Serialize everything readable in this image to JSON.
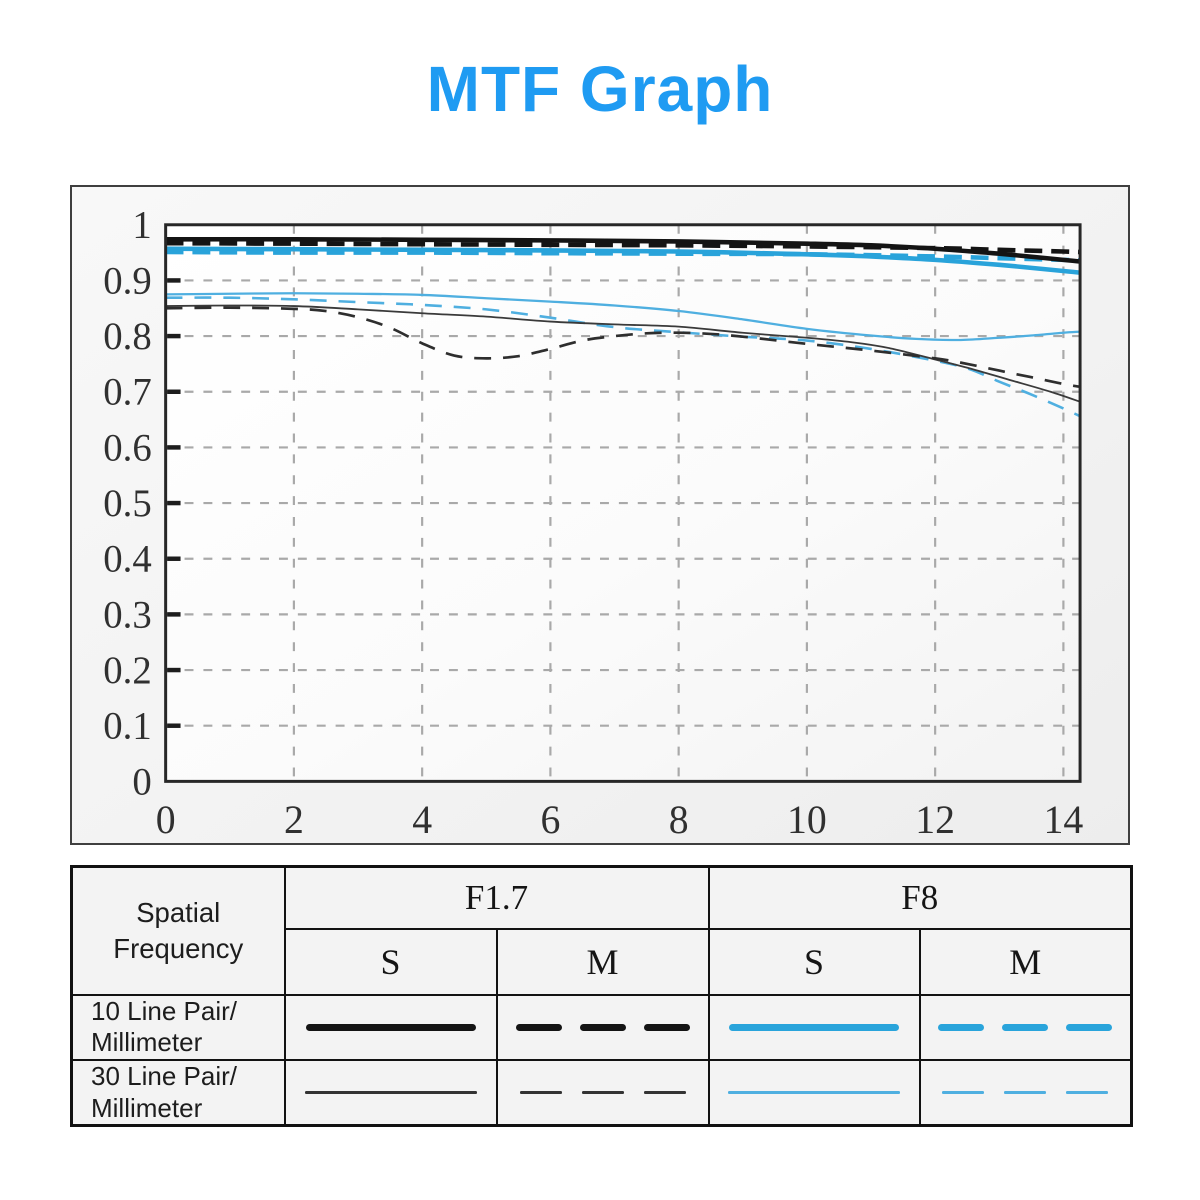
{
  "header": {
    "title": "MTF Graph",
    "title_color": "#1F9BF2"
  },
  "chart_data": {
    "type": "line",
    "title": "MTF Graph",
    "xlim": [
      0,
      14.26
    ],
    "ylim": [
      0,
      1
    ],
    "grid": "dashed",
    "grid_color": "#a9a9a9",
    "frame_color": "#272727",
    "axis_text_color": "#303030",
    "x_tick_values": [
      0,
      2,
      4,
      6,
      8,
      10,
      12,
      14
    ],
    "x_tick_labels": [
      "0",
      "2",
      "4",
      "6",
      "8",
      "10",
      "12",
      "14"
    ],
    "y_tick_values": [
      1,
      0.9,
      0.8,
      0.7,
      0.6,
      0.5,
      0.4,
      0.3,
      0.2,
      0.1,
      0
    ],
    "y_tick_labels": [
      "1",
      "0.9",
      "0.8",
      "0.7",
      "0.6",
      "0.5",
      "0.4",
      "0.3",
      "0.2",
      "0.1",
      "0"
    ],
    "series": [
      {
        "name": "f8-s-30lp",
        "aperture": "F8",
        "orientation": "S",
        "frequency": "30 Line Pair/Millimeter",
        "color": "#4FAFE0",
        "width": 2.3,
        "dash": null,
        "points": [
          [
            0,
            0.875
          ],
          [
            1,
            0.876
          ],
          [
            2,
            0.877
          ],
          [
            3,
            0.876
          ],
          [
            4,
            0.874
          ],
          [
            5,
            0.868
          ],
          [
            6,
            0.862
          ],
          [
            7,
            0.855
          ],
          [
            8,
            0.845
          ],
          [
            9,
            0.83
          ],
          [
            10,
            0.813
          ],
          [
            11,
            0.801
          ],
          [
            11.7,
            0.795
          ],
          [
            12.4,
            0.793
          ],
          [
            13,
            0.797
          ],
          [
            13.5,
            0.801
          ],
          [
            14,
            0.806
          ],
          [
            14.26,
            0.808
          ]
        ]
      },
      {
        "name": "f8-m-30lp",
        "aperture": "F8",
        "orientation": "M",
        "frequency": "30 Line Pair/Millimeter",
        "color": "#4FAFE0",
        "width": 2.6,
        "dash": [
          17,
          12
        ],
        "points": [
          [
            0,
            0.869
          ],
          [
            1,
            0.869
          ],
          [
            2,
            0.866
          ],
          [
            3,
            0.861
          ],
          [
            4,
            0.856
          ],
          [
            5,
            0.848
          ],
          [
            6,
            0.833
          ],
          [
            7,
            0.816
          ],
          [
            8,
            0.807
          ],
          [
            9,
            0.799
          ],
          [
            10,
            0.792
          ],
          [
            11,
            0.777
          ],
          [
            11.9,
            0.758
          ],
          [
            12.5,
            0.742
          ],
          [
            13,
            0.718
          ],
          [
            13.5,
            0.695
          ],
          [
            14,
            0.67
          ],
          [
            14.26,
            0.656
          ]
        ]
      },
      {
        "name": "f1.7-s-30lp",
        "aperture": "F1.7",
        "orientation": "S",
        "frequency": "30 Line Pair/Millimeter",
        "color": "#3a3a3a",
        "width": 1.8,
        "dash": null,
        "points": [
          [
            0,
            0.854
          ],
          [
            1,
            0.855
          ],
          [
            2,
            0.854
          ],
          [
            3,
            0.848
          ],
          [
            4,
            0.841
          ],
          [
            5,
            0.835
          ],
          [
            6,
            0.826
          ],
          [
            7,
            0.821
          ],
          [
            8,
            0.817
          ],
          [
            9,
            0.806
          ],
          [
            10,
            0.797
          ],
          [
            10.7,
            0.789
          ],
          [
            11.3,
            0.778
          ],
          [
            12,
            0.758
          ],
          [
            12.6,
            0.74
          ],
          [
            13.2,
            0.72
          ],
          [
            13.8,
            0.7
          ],
          [
            14.26,
            0.682
          ]
        ]
      },
      {
        "name": "f1.7-m-30lp",
        "aperture": "F1.7",
        "orientation": "M",
        "frequency": "30 Line Pair/Millimeter",
        "color": "#2e2e2e",
        "width": 2.7,
        "dash": [
          17,
          12
        ],
        "points": [
          [
            0,
            0.85
          ],
          [
            1,
            0.851
          ],
          [
            2,
            0.849
          ],
          [
            2.5,
            0.845
          ],
          [
            3,
            0.834
          ],
          [
            3.5,
            0.815
          ],
          [
            4,
            0.787
          ],
          [
            4.5,
            0.765
          ],
          [
            5,
            0.76
          ],
          [
            5.5,
            0.764
          ],
          [
            6,
            0.777
          ],
          [
            6.5,
            0.792
          ],
          [
            7,
            0.8
          ],
          [
            7.5,
            0.805
          ],
          [
            8,
            0.806
          ],
          [
            8.5,
            0.804
          ],
          [
            9,
            0.799
          ],
          [
            10,
            0.786
          ],
          [
            11,
            0.774
          ],
          [
            12,
            0.76
          ],
          [
            12.5,
            0.75
          ],
          [
            13,
            0.738
          ],
          [
            13.5,
            0.726
          ],
          [
            14,
            0.714
          ],
          [
            14.26,
            0.709
          ]
        ]
      },
      {
        "name": "f8-s-10lp",
        "aperture": "F8",
        "orientation": "S",
        "frequency": "10 Line Pair/Millimeter",
        "color": "#29A3DA",
        "width": 4.6,
        "dash": null,
        "points": [
          [
            0,
            0.957
          ],
          [
            2,
            0.956
          ],
          [
            4,
            0.955
          ],
          [
            6,
            0.954
          ],
          [
            8,
            0.952
          ],
          [
            10,
            0.947
          ],
          [
            11,
            0.943
          ],
          [
            12,
            0.937
          ],
          [
            13,
            0.928
          ],
          [
            14,
            0.917
          ],
          [
            14.26,
            0.914
          ]
        ]
      },
      {
        "name": "f8-m-10lp",
        "aperture": "F8",
        "orientation": "M",
        "frequency": "10 Line Pair/Millimeter",
        "color": "#29A3DA",
        "width": 4.6,
        "dash": [
          18,
          9
        ],
        "points": [
          [
            0,
            0.951
          ],
          [
            2,
            0.95
          ],
          [
            4,
            0.95
          ],
          [
            6,
            0.949
          ],
          [
            8,
            0.948
          ],
          [
            10,
            0.947
          ],
          [
            12,
            0.943
          ],
          [
            13,
            0.94
          ],
          [
            14,
            0.937
          ],
          [
            14.26,
            0.936
          ]
        ]
      },
      {
        "name": "f1.7-s-10lp",
        "aperture": "F1.7",
        "orientation": "S",
        "frequency": "10 Line Pair/Millimeter",
        "color": "#141414",
        "width": 4.6,
        "dash": null,
        "points": [
          [
            0,
            0.974
          ],
          [
            2,
            0.974
          ],
          [
            4,
            0.973
          ],
          [
            6,
            0.972
          ],
          [
            8,
            0.97
          ],
          [
            10,
            0.966
          ],
          [
            11,
            0.963
          ],
          [
            12,
            0.957
          ],
          [
            13,
            0.948
          ],
          [
            14,
            0.937
          ],
          [
            14.26,
            0.934
          ]
        ]
      },
      {
        "name": "f1.7-m-10lp",
        "aperture": "F1.7",
        "orientation": "M",
        "frequency": "10 Line Pair/Millimeter",
        "color": "#141414",
        "width": 4.6,
        "dash": [
          18,
          9
        ],
        "points": [
          [
            0,
            0.967
          ],
          [
            2,
            0.966
          ],
          [
            4,
            0.965
          ],
          [
            6,
            0.964
          ],
          [
            8,
            0.963
          ],
          [
            10,
            0.961
          ],
          [
            12,
            0.958
          ],
          [
            13,
            0.955
          ],
          [
            14,
            0.952
          ],
          [
            14.26,
            0.951
          ]
        ]
      }
    ]
  },
  "legend": {
    "corner_label": "Spatial\nFrequency",
    "groups": [
      {
        "label": "F1.7"
      },
      {
        "label": "F8"
      }
    ],
    "sub_labels": [
      "S",
      "M",
      "S",
      "M"
    ],
    "rows": [
      {
        "label": "10 Line Pair/\nMillimeter",
        "samples": [
          {
            "color": "#141414",
            "style": "solid",
            "thickness": 7
          },
          {
            "color": "#141414",
            "style": "dashed",
            "thickness": 7
          },
          {
            "color": "#29A4DB",
            "style": "solid",
            "thickness": 7
          },
          {
            "color": "#29A4DB",
            "style": "dashed",
            "thickness": 7
          }
        ]
      },
      {
        "label": "30 Line Pair/\nMillimeter",
        "samples": [
          {
            "color": "#333333",
            "style": "solid",
            "thickness": 2.5
          },
          {
            "color": "#333333",
            "style": "dashed",
            "thickness": 2.5
          },
          {
            "color": "#4FAFE0",
            "style": "solid",
            "thickness": 2.5
          },
          {
            "color": "#4FAFE0",
            "style": "dashed",
            "thickness": 2.5
          }
        ]
      }
    ]
  }
}
